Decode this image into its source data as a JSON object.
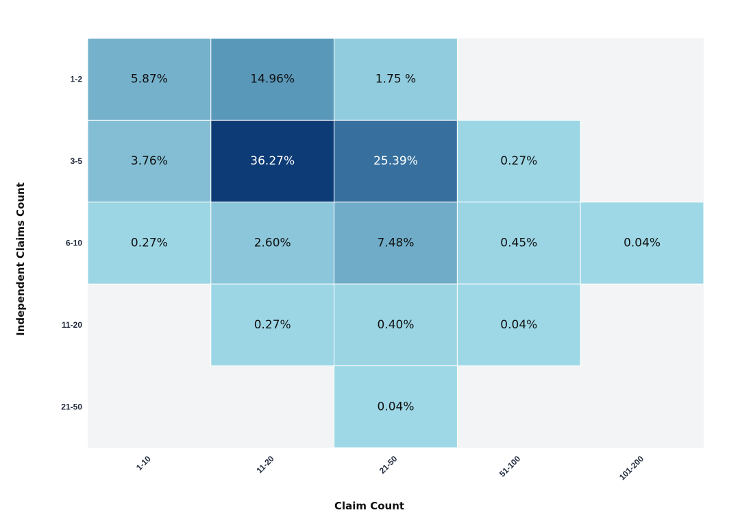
{
  "chart_data": {
    "type": "heatmap",
    "title": "",
    "xlabel": "Claim Count",
    "ylabel": "Independent Claims Count",
    "x_categories": [
      "1-10",
      "11-20",
      "21-50",
      "51-100",
      "101-200"
    ],
    "y_categories": [
      "1-2",
      "3-5",
      "6-10",
      "11-20",
      "21-50"
    ],
    "cells": [
      {
        "row": "1-2",
        "col": "1-10",
        "value": 5.87,
        "label": "5.87%"
      },
      {
        "row": "1-2",
        "col": "11-20",
        "value": 14.96,
        "label": "14.96%"
      },
      {
        "row": "1-2",
        "col": "21-50",
        "value": 1.75,
        "label": "1.75 %"
      },
      {
        "row": "3-5",
        "col": "1-10",
        "value": 3.76,
        "label": "3.76%"
      },
      {
        "row": "3-5",
        "col": "11-20",
        "value": 36.27,
        "label": "36.27%"
      },
      {
        "row": "3-5",
        "col": "21-50",
        "value": 25.39,
        "label": "25.39%"
      },
      {
        "row": "3-5",
        "col": "51-100",
        "value": 0.27,
        "label": "0.27%"
      },
      {
        "row": "6-10",
        "col": "1-10",
        "value": 0.27,
        "label": "0.27%"
      },
      {
        "row": "6-10",
        "col": "11-20",
        "value": 2.6,
        "label": "2.60%"
      },
      {
        "row": "6-10",
        "col": "21-50",
        "value": 7.48,
        "label": "7.48%"
      },
      {
        "row": "6-10",
        "col": "51-100",
        "value": 0.45,
        "label": "0.45%"
      },
      {
        "row": "6-10",
        "col": "101-200",
        "value": 0.04,
        "label": "0.04%"
      },
      {
        "row": "11-20",
        "col": "11-20",
        "value": 0.27,
        "label": "0.27%"
      },
      {
        "row": "11-20",
        "col": "21-50",
        "value": 0.4,
        "label": "0.40%"
      },
      {
        "row": "11-20",
        "col": "51-100",
        "value": 0.04,
        "label": "0.04%"
      },
      {
        "row": "21-50",
        "col": "21-50",
        "value": 0.04,
        "label": "0.04%"
      }
    ],
    "colorscale": [
      "#9ed8e6",
      "#0d3b75"
    ],
    "empty_color": "#f3f4f6",
    "legend": "none",
    "grid": false
  }
}
